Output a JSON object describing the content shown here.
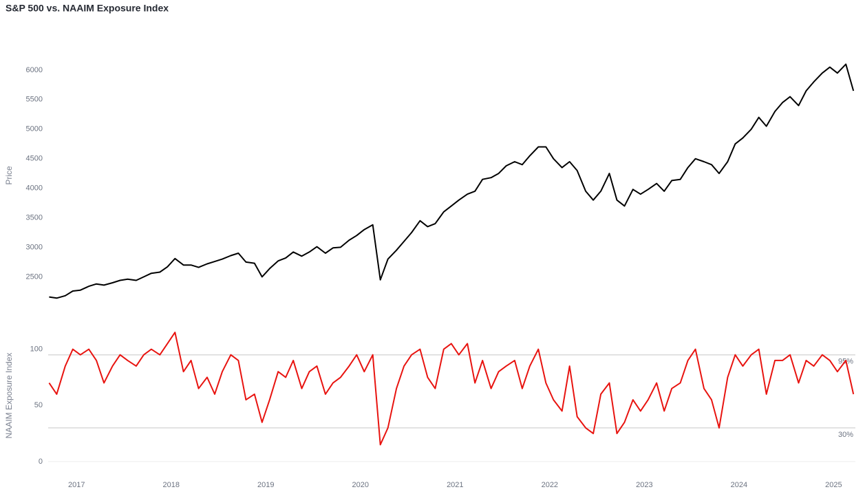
{
  "chart_data": [
    {
      "type": "line",
      "title": "S&P 500 vs. NAAIM Exposure Index",
      "ylabel": "Price",
      "color": "#000000",
      "x": [
        2016.71,
        2016.79,
        2016.88,
        2016.96,
        2017.04,
        2017.13,
        2017.21,
        2017.29,
        2017.38,
        2017.46,
        2017.54,
        2017.63,
        2017.71,
        2017.79,
        2017.88,
        2017.96,
        2018.04,
        2018.13,
        2018.21,
        2018.29,
        2018.38,
        2018.46,
        2018.54,
        2018.63,
        2018.71,
        2018.79,
        2018.88,
        2018.96,
        2019.04,
        2019.13,
        2019.21,
        2019.29,
        2019.38,
        2019.46,
        2019.54,
        2019.63,
        2019.71,
        2019.79,
        2019.88,
        2019.96,
        2020.04,
        2020.13,
        2020.21,
        2020.29,
        2020.38,
        2020.46,
        2020.54,
        2020.63,
        2020.71,
        2020.79,
        2020.88,
        2020.96,
        2021.04,
        2021.13,
        2021.21,
        2021.29,
        2021.38,
        2021.46,
        2021.54,
        2021.63,
        2021.71,
        2021.79,
        2021.88,
        2021.96,
        2022.04,
        2022.13,
        2022.21,
        2022.29,
        2022.38,
        2022.46,
        2022.54,
        2022.63,
        2022.71,
        2022.79,
        2022.88,
        2022.96,
        2023.04,
        2023.13,
        2023.21,
        2023.29,
        2023.38,
        2023.46,
        2023.54,
        2023.63,
        2023.71,
        2023.79,
        2023.88,
        2023.96,
        2024.04,
        2024.13,
        2024.21,
        2024.29,
        2024.38,
        2024.46,
        2024.54,
        2024.63,
        2024.71,
        2024.79,
        2024.88,
        2024.96,
        2025.04,
        2025.13,
        2025.21
      ],
      "values": [
        2160,
        2140,
        2180,
        2260,
        2275,
        2340,
        2380,
        2360,
        2400,
        2440,
        2460,
        2440,
        2500,
        2560,
        2580,
        2670,
        2810,
        2700,
        2700,
        2660,
        2720,
        2760,
        2800,
        2860,
        2900,
        2750,
        2730,
        2500,
        2640,
        2770,
        2820,
        2920,
        2850,
        2920,
        3010,
        2900,
        2990,
        3000,
        3120,
        3200,
        3300,
        3380,
        2450,
        2800,
        2950,
        3100,
        3250,
        3450,
        3350,
        3400,
        3600,
        3700,
        3800,
        3900,
        3950,
        4150,
        4180,
        4250,
        4380,
        4450,
        4400,
        4550,
        4700,
        4700,
        4500,
        4350,
        4450,
        4300,
        3950,
        3800,
        3950,
        4250,
        3800,
        3700,
        3980,
        3900,
        3980,
        4080,
        3950,
        4130,
        4150,
        4350,
        4500,
        4450,
        4400,
        4250,
        4450,
        4750,
        4850,
        5000,
        5200,
        5050,
        5300,
        5450,
        5550,
        5400,
        5650,
        5800,
        5950,
        6050,
        5950,
        6100,
        5650
      ],
      "xlim": [
        2016.7,
        2025.23
      ],
      "ylim": [
        2050,
        6500
      ],
      "yticks": [
        2500,
        3000,
        3500,
        4000,
        4500,
        5000,
        5500,
        6000
      ]
    },
    {
      "type": "line",
      "ylabel": "NAAIM Exposure Index",
      "color": "#e8130f",
      "x": [
        2016.71,
        2016.79,
        2016.88,
        2016.96,
        2017.04,
        2017.13,
        2017.21,
        2017.29,
        2017.38,
        2017.46,
        2017.54,
        2017.63,
        2017.71,
        2017.79,
        2017.88,
        2017.96,
        2018.04,
        2018.13,
        2018.21,
        2018.29,
        2018.38,
        2018.46,
        2018.54,
        2018.63,
        2018.71,
        2018.79,
        2018.88,
        2018.96,
        2019.04,
        2019.13,
        2019.21,
        2019.29,
        2019.38,
        2019.46,
        2019.54,
        2019.63,
        2019.71,
        2019.79,
        2019.88,
        2019.96,
        2020.04,
        2020.13,
        2020.21,
        2020.29,
        2020.38,
        2020.46,
        2020.54,
        2020.63,
        2020.71,
        2020.79,
        2020.88,
        2020.96,
        2021.04,
        2021.13,
        2021.21,
        2021.29,
        2021.38,
        2021.46,
        2021.54,
        2021.63,
        2021.71,
        2021.79,
        2021.88,
        2021.96,
        2022.04,
        2022.13,
        2022.21,
        2022.29,
        2022.38,
        2022.46,
        2022.54,
        2022.63,
        2022.71,
        2022.79,
        2022.88,
        2022.96,
        2023.04,
        2023.13,
        2023.21,
        2023.29,
        2023.38,
        2023.46,
        2023.54,
        2023.63,
        2023.71,
        2023.79,
        2023.88,
        2023.96,
        2024.04,
        2024.13,
        2024.21,
        2024.29,
        2024.38,
        2024.46,
        2024.54,
        2024.63,
        2024.71,
        2024.79,
        2024.88,
        2024.96,
        2025.04,
        2025.13,
        2025.21
      ],
      "values": [
        70,
        60,
        85,
        100,
        95,
        100,
        90,
        70,
        85,
        95,
        90,
        85,
        95,
        100,
        95,
        105,
        115,
        80,
        90,
        65,
        75,
        60,
        80,
        95,
        90,
        55,
        60,
        35,
        55,
        80,
        75,
        90,
        65,
        80,
        85,
        60,
        70,
        75,
        85,
        95,
        80,
        95,
        15,
        30,
        65,
        85,
        95,
        100,
        75,
        65,
        100,
        105,
        95,
        105,
        70,
        90,
        65,
        80,
        85,
        90,
        65,
        85,
        100,
        70,
        55,
        45,
        85,
        40,
        30,
        25,
        60,
        70,
        25,
        35,
        55,
        45,
        55,
        70,
        45,
        65,
        70,
        90,
        100,
        65,
        55,
        30,
        75,
        95,
        85,
        95,
        100,
        60,
        90,
        90,
        95,
        70,
        90,
        85,
        95,
        90,
        80,
        90,
        60
      ],
      "xlim": [
        2016.7,
        2025.23
      ],
      "ylim": [
        -8,
        123
      ],
      "yticks": [
        0,
        50,
        100
      ],
      "xticks": [
        2017,
        2018,
        2019,
        2020,
        2021,
        2022,
        2023,
        2024,
        2025
      ],
      "hlines": [
        {
          "value": 95,
          "label": "95%"
        },
        {
          "value": 30,
          "label": "30%"
        }
      ]
    }
  ]
}
